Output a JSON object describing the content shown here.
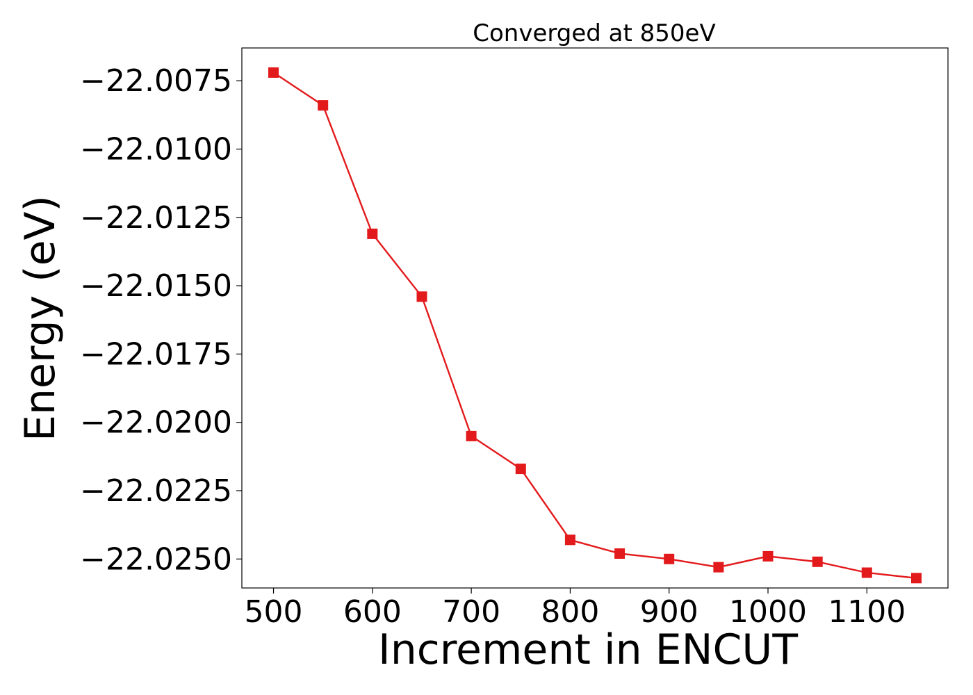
{
  "chart_data": {
    "type": "line",
    "title": "Converged at 850eV",
    "xlabel": "Increment in ENCUT",
    "ylabel": "Energy (eV)",
    "x": [
      500,
      550,
      600,
      650,
      700,
      750,
      800,
      850,
      900,
      950,
      1000,
      1050,
      1100,
      1150
    ],
    "series": [
      {
        "values": [
          -22.0072,
          -22.0084,
          -22.0131,
          -22.0154,
          -22.0205,
          -22.0217,
          -22.0243,
          -22.0248,
          -22.025,
          -22.0253,
          -22.0249,
          -22.0251,
          -22.0255,
          -22.0257
        ],
        "color": "#e31a1c",
        "marker": "square"
      }
    ],
    "xticks": [
      500,
      600,
      700,
      800,
      900,
      1000,
      1100
    ],
    "xtick_labels": [
      "500",
      "600",
      "700",
      "800",
      "900",
      "1000",
      "1100"
    ],
    "yticks": [
      -22.0075,
      -22.01,
      -22.0125,
      -22.015,
      -22.0175,
      -22.02,
      -22.0225,
      -22.025
    ],
    "ytick_labels": [
      "−22.0075",
      "−22.0100",
      "−22.0125",
      "−22.0150",
      "−22.0175",
      "−22.0200",
      "−22.0225",
      "−22.0250"
    ],
    "xlim": [
      468,
      1182
    ],
    "ylim": [
      -22.02606,
      -22.0063
    ],
    "grid": false,
    "legend": "none"
  }
}
